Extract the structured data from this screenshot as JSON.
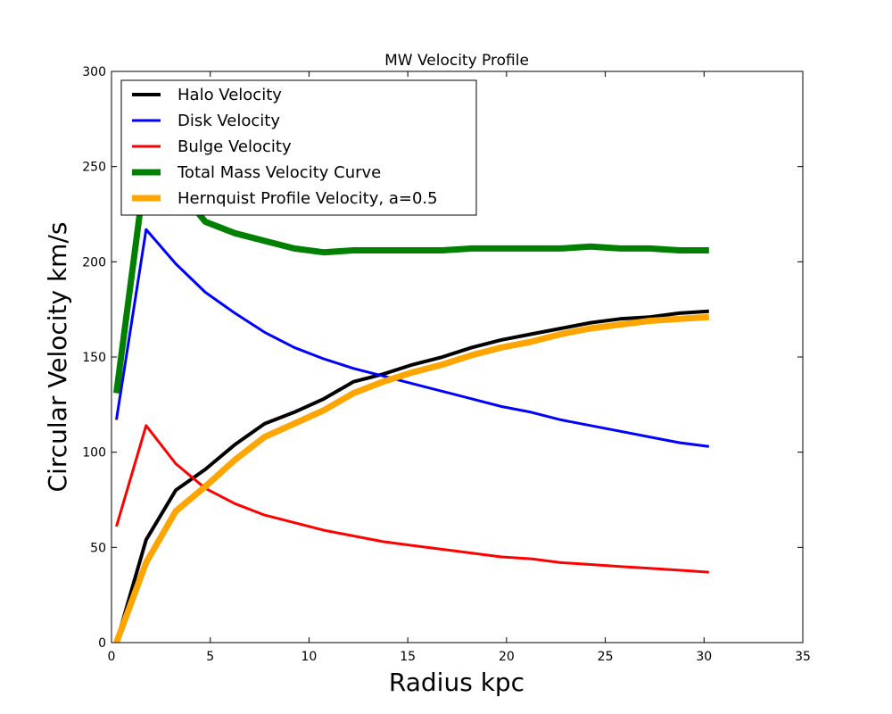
{
  "chart_data": {
    "type": "line",
    "title": "MW Velocity Profile",
    "xlabel": "Radius kpc",
    "ylabel": "Circular Velocity km/s",
    "xlim": [
      0,
      35
    ],
    "ylim": [
      0,
      300
    ],
    "xticks": [
      0,
      5,
      10,
      15,
      20,
      25,
      30,
      35
    ],
    "yticks": [
      0,
      50,
      100,
      150,
      200,
      250,
      300
    ],
    "grid": false,
    "legend_position": "top-left",
    "x": [
      0.25,
      1.75,
      3.25,
      4.75,
      6.25,
      7.75,
      9.25,
      10.75,
      12.25,
      13.75,
      15.25,
      16.75,
      18.25,
      19.75,
      21.25,
      22.75,
      24.25,
      25.75,
      27.25,
      28.75,
      30.25
    ],
    "series": [
      {
        "name": "Halo Velocity",
        "color": "#000000",
        "width": 4,
        "values": [
          0,
          54,
          80,
          91,
          104,
          115,
          121,
          128,
          137,
          141,
          146,
          150,
          155,
          159,
          162,
          165,
          168,
          170,
          171,
          173,
          174
        ]
      },
      {
        "name": "Disk Velocity",
        "color": "#0000ff",
        "width": 3,
        "values": [
          117,
          217,
          199,
          184,
          173,
          163,
          155,
          149,
          144,
          140,
          136,
          132,
          128,
          124,
          121,
          117,
          114,
          111,
          108,
          105,
          103
        ]
      },
      {
        "name": "Bulge Velocity",
        "color": "#ff0000",
        "width": 3,
        "values": [
          61,
          114,
          94,
          81,
          73,
          67,
          63,
          59,
          56,
          53,
          51,
          49,
          47,
          45,
          44,
          42,
          41,
          40,
          39,
          38,
          37
        ]
      },
      {
        "name": "Total Mass Velocity Curve",
        "color": "#008000",
        "width": 7,
        "values": [
          131,
          251,
          240,
          221,
          215,
          211,
          207,
          205,
          206,
          206,
          206,
          206,
          207,
          207,
          207,
          207,
          208,
          207,
          207,
          206,
          206
        ]
      },
      {
        "name": "Hernquist Profile Velocity, a=0.5",
        "color": "#ffa500",
        "width": 7,
        "values": [
          0,
          42,
          69,
          82,
          96,
          108,
          115,
          122,
          131,
          137,
          142,
          146,
          151,
          155,
          158,
          162,
          165,
          167,
          169,
          170,
          171
        ]
      }
    ]
  }
}
